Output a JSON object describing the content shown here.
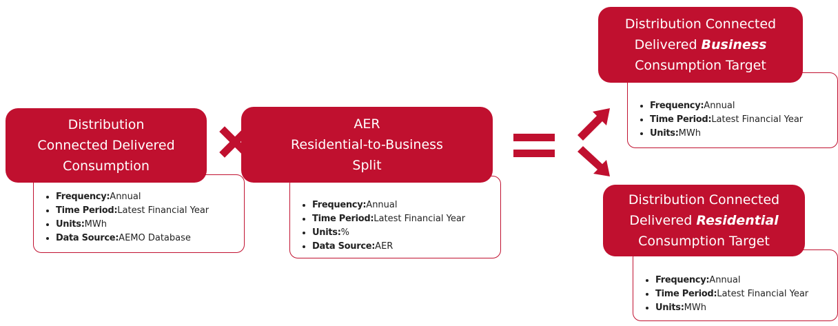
{
  "nodes": [
    {
      "title": [
        [
          {
            "text": "Distribution"
          }
        ],
        [
          {
            "text": "Connected Delivered"
          }
        ],
        [
          {
            "text": "Consumption"
          }
        ]
      ],
      "details": [
        {
          "label": "Frequency:",
          "value": "Annual"
        },
        {
          "label": "Time Period:",
          "value": "Latest Financial Year"
        },
        {
          "label": "Units:",
          "value": "MWh"
        },
        {
          "label": "Data Source:",
          "value": "AEMO Database"
        }
      ]
    },
    {
      "title": [
        [
          {
            "text": "AER"
          }
        ],
        [
          {
            "text": "Residential-to-Business"
          }
        ],
        [
          {
            "text": "Split"
          }
        ]
      ],
      "details": [
        {
          "label": "Frequency:",
          "value": "Annual"
        },
        {
          "label": "Time Period:",
          "value": "Latest Financial Year"
        },
        {
          "label": "Units:",
          "value": "%"
        },
        {
          "label": "Data Source:",
          "value": "AER"
        }
      ]
    },
    {
      "title": [
        [
          {
            "text": "Distribution Connected"
          }
        ],
        [
          {
            "text": "Delivered"
          },
          {
            "text": "Business",
            "italic": true
          }
        ],
        [
          {
            "text": "Consumption Target"
          }
        ]
      ],
      "details": [
        {
          "label": "Frequency:",
          "value": "Annual"
        },
        {
          "label": "Time Period:",
          "value": "Latest Financial Year"
        },
        {
          "label": "Units:",
          "value": "MWh"
        }
      ]
    },
    {
      "title": [
        [
          {
            "text": "Distribution Connected"
          }
        ],
        [
          {
            "text": "Delivered"
          },
          {
            "text": "Residential",
            "italic": true
          }
        ],
        [
          {
            "text": "Consumption Target"
          }
        ]
      ],
      "details": [
        {
          "label": "Frequency:",
          "value": "Annual"
        },
        {
          "label": "Time Period:",
          "value": "Latest Financial Year"
        },
        {
          "label": "Units:",
          "value": "MWh"
        }
      ]
    }
  ]
}
